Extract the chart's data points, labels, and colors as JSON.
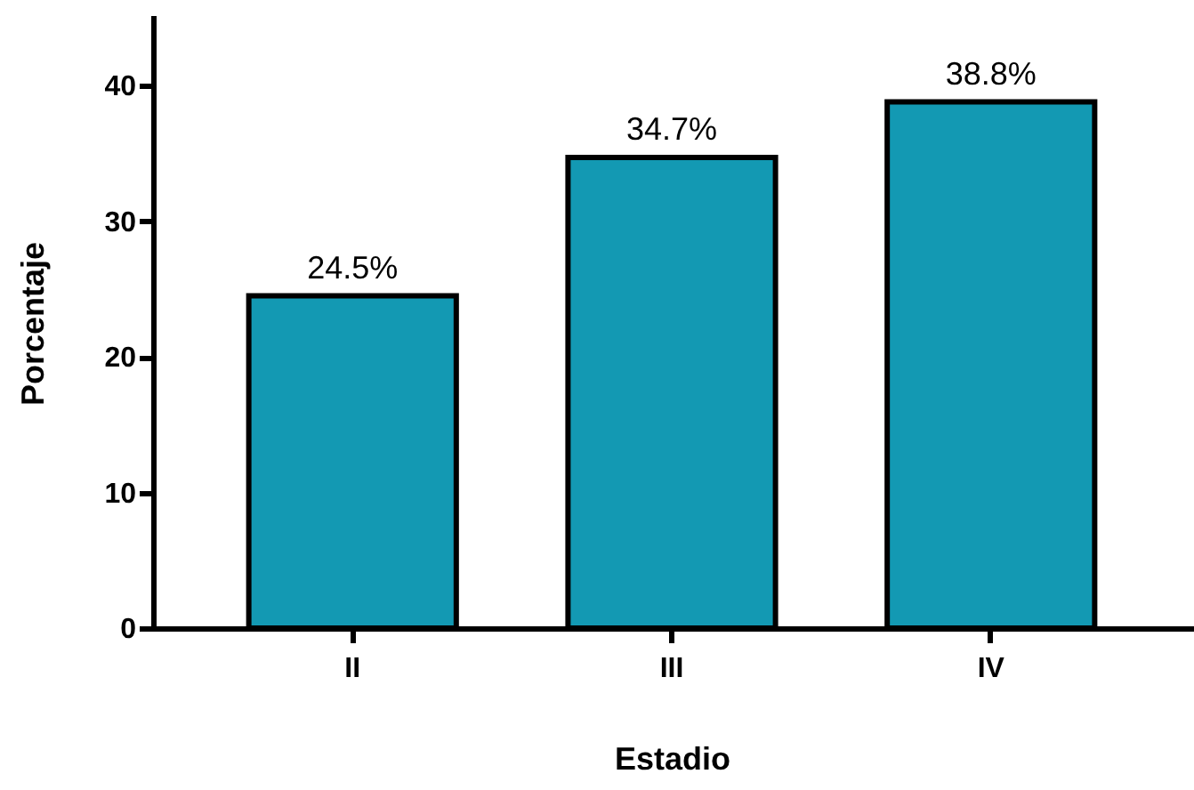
{
  "chart_data": {
    "type": "bar",
    "xlabel": "Estadio",
    "ylabel": "Porcentaje",
    "categories": [
      "II",
      "III",
      "IV"
    ],
    "values": [
      24.5,
      34.7,
      38.8
    ],
    "value_labels": [
      "24.5%",
      "34.7%",
      "38.8%"
    ],
    "color": "#1399b3",
    "ylim": [
      0,
      45
    ],
    "yticks": [
      0,
      10,
      20,
      30,
      40
    ],
    "grid": false
  }
}
